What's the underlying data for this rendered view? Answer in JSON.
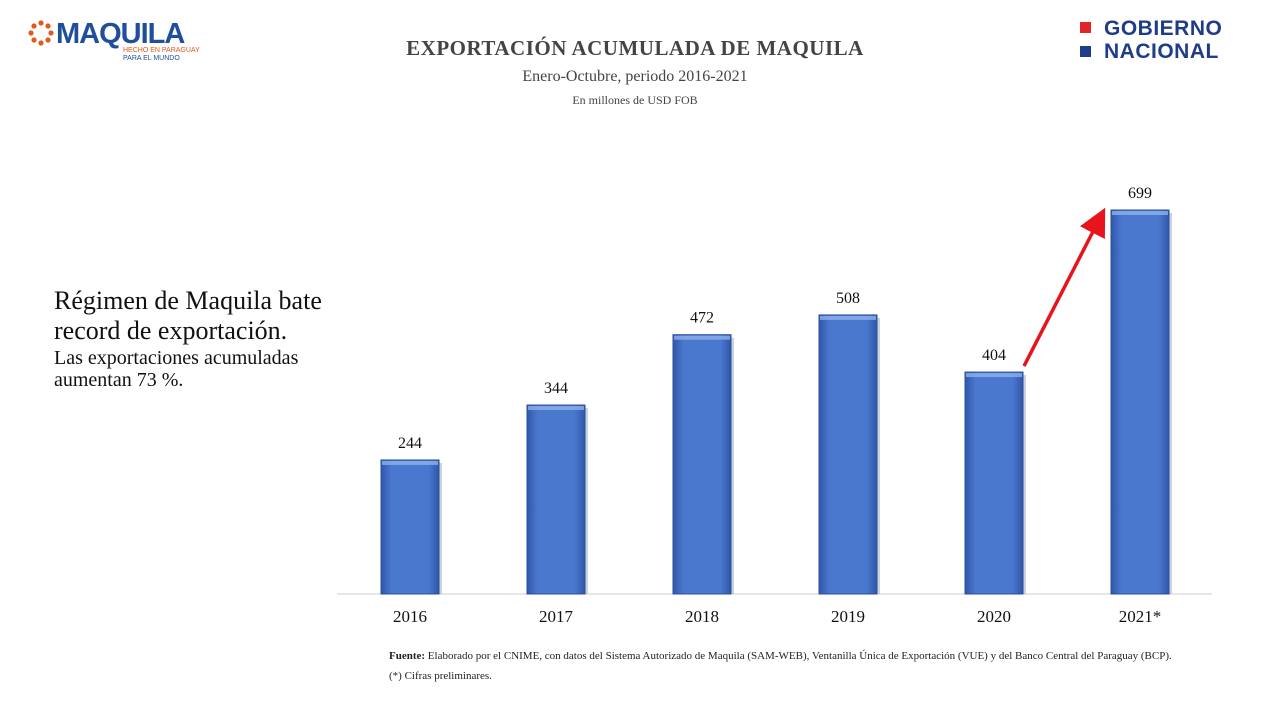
{
  "header": {
    "maquila_logo": {
      "word": "MAQUILA",
      "tagline_1": "HECHO EN PARAGUAY",
      "tagline_2": "PARA EL MUNDO"
    },
    "gobierno_logo": {
      "line_1": "GOBIERNO",
      "line_2": "NACIONAL"
    },
    "title": "EXPORTACIÓN ACUMULADA DE MAQUILA",
    "subtitle": "Enero-Octubre, periodo 2016-2021",
    "units": "En millones de USD FOB"
  },
  "side_text": {
    "headline": "Régimen de Maquila bate record de exportación.",
    "subline": "Las exportaciones acumuladas aumentan 73 %."
  },
  "footer": {
    "source_label": "Fuente:",
    "source_text": " Elaborado por el CNIME, con datos del Sistema Autorizado de Maquila (SAM-WEB), Ventanilla Única de Exportación (VUE) y del Banco Central del Paraguay (BCP).",
    "note": "(*) Cifras preliminares."
  },
  "colors": {
    "bar": "#4a78cf",
    "bar_dark": "#2f56a8",
    "arrow": "#e8141b",
    "logo_blue": "#1f4e9c",
    "logo_orange": "#e05a1e"
  },
  "chart_data": {
    "type": "bar",
    "title": "EXPORTACIÓN ACUMULADA DE MAQUILA",
    "subtitle": "Enero-Octubre, periodo 2016-2021",
    "ylabel": "En millones de USD FOB",
    "xlabel": "",
    "categories": [
      "2016",
      "2017",
      "2018",
      "2019",
      "2020",
      "2021*"
    ],
    "values": [
      244,
      344,
      472,
      508,
      404,
      699
    ],
    "data_labels": [
      "244",
      "344",
      "472",
      "508",
      "404",
      "699"
    ],
    "ylim": [
      0,
      750
    ],
    "grid": false,
    "legend": "none",
    "annotation": {
      "type": "arrow",
      "from": "2020",
      "to": "2021*",
      "color": "#e8141b"
    }
  }
}
